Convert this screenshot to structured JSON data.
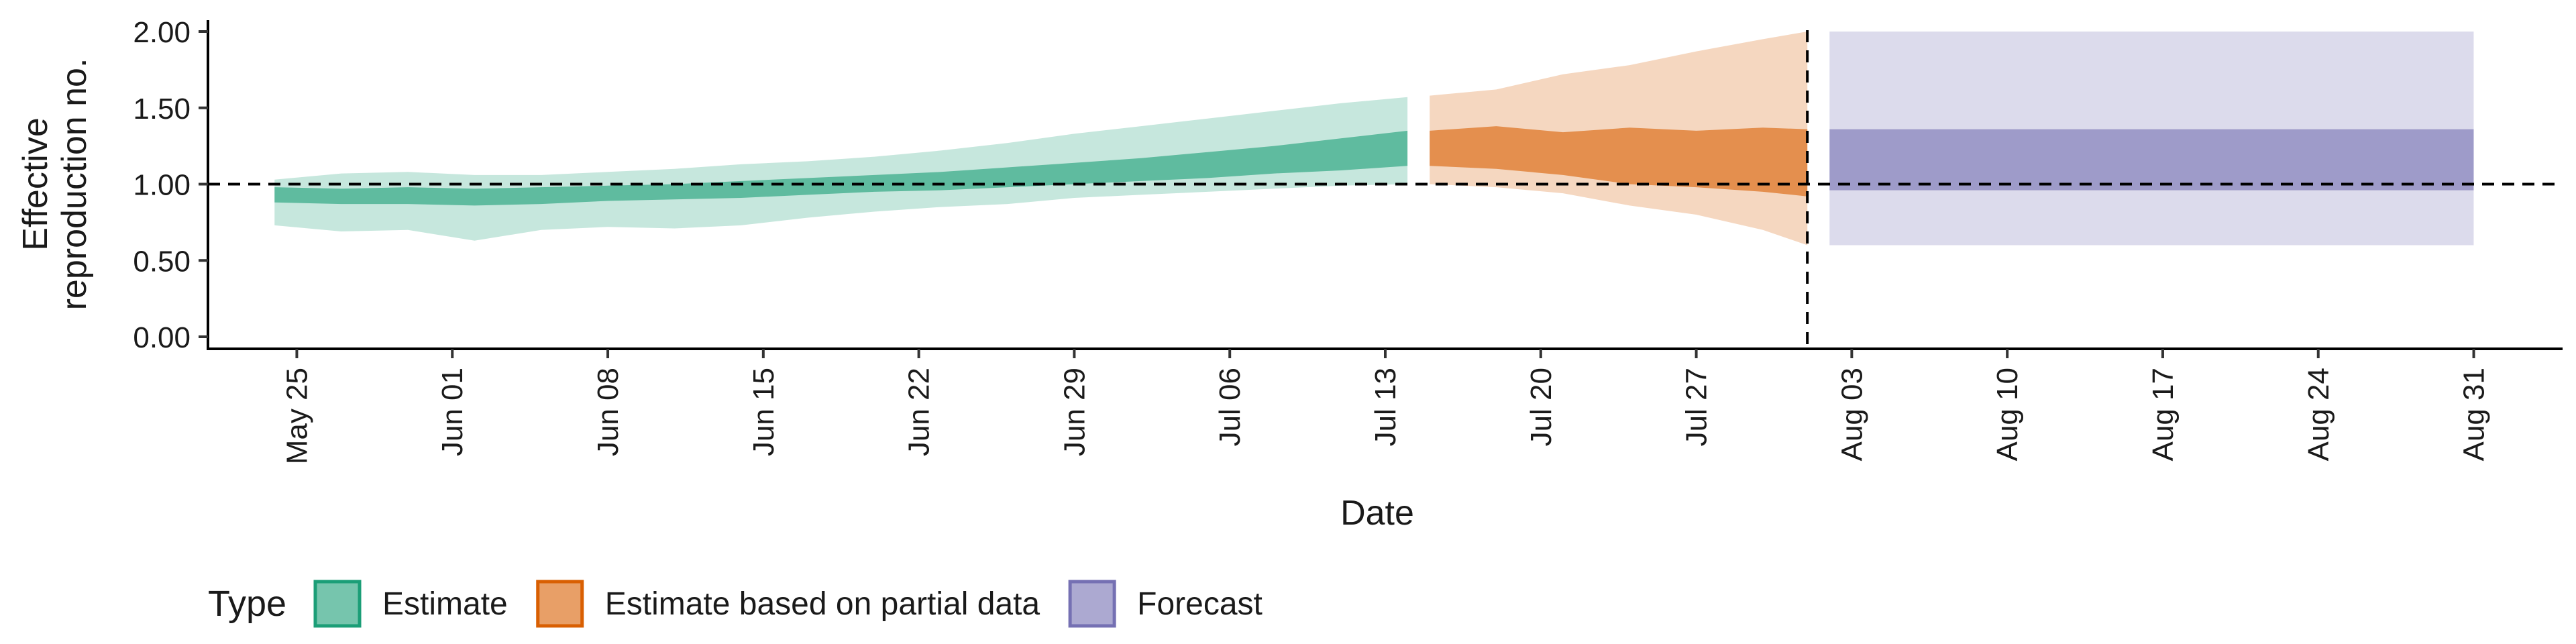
{
  "chart_data": {
    "type": "area",
    "xlabel": "Date",
    "ylabel": [
      "Effective",
      "reproduction no."
    ],
    "ylim": [
      0.0,
      2.0
    ],
    "y_ticks": [
      "0.00",
      "0.50",
      "1.00",
      "1.50",
      "2.00"
    ],
    "x_range": [
      "2020-05-21",
      "2020-09-04"
    ],
    "x_ticks": [
      {
        "date": "2020-05-25",
        "label": "May 25"
      },
      {
        "date": "2020-06-01",
        "label": "Jun 01"
      },
      {
        "date": "2020-06-08",
        "label": "Jun 08"
      },
      {
        "date": "2020-06-15",
        "label": "Jun 15"
      },
      {
        "date": "2020-06-22",
        "label": "Jun 22"
      },
      {
        "date": "2020-06-29",
        "label": "Jun 29"
      },
      {
        "date": "2020-07-06",
        "label": "Jul 06"
      },
      {
        "date": "2020-07-13",
        "label": "Jul 13"
      },
      {
        "date": "2020-07-20",
        "label": "Jul 20"
      },
      {
        "date": "2020-07-27",
        "label": "Jul 27"
      },
      {
        "date": "2020-08-03",
        "label": "Aug 03"
      },
      {
        "date": "2020-08-10",
        "label": "Aug 10"
      },
      {
        "date": "2020-08-17",
        "label": "Aug 17"
      },
      {
        "date": "2020-08-24",
        "label": "Aug 24"
      },
      {
        "date": "2020-08-31",
        "label": "Aug 31"
      }
    ],
    "reference_line": {
      "y": 1.0,
      "style": "dashed"
    },
    "vertical_line": {
      "date": "2020-08-01",
      "style": "dashed"
    },
    "legend": {
      "title": "Type",
      "position": "bottom"
    },
    "series": [
      {
        "name": "Estimate",
        "fill": "#1b9e77",
        "dates": [
          "2020-05-24",
          "2020-05-27",
          "2020-05-30",
          "2020-06-02",
          "2020-06-05",
          "2020-06-08",
          "2020-06-11",
          "2020-06-14",
          "2020-06-17",
          "2020-06-20",
          "2020-06-23",
          "2020-06-26",
          "2020-06-29",
          "2020-07-02",
          "2020-07-05",
          "2020-07-08",
          "2020-07-11",
          "2020-07-14"
        ],
        "outer_lower": [
          0.73,
          0.69,
          0.7,
          0.63,
          0.7,
          0.72,
          0.71,
          0.73,
          0.78,
          0.82,
          0.85,
          0.87,
          0.91,
          0.93,
          0.95,
          0.97,
          0.99,
          1.0
        ],
        "outer_upper": [
          1.03,
          1.07,
          1.08,
          1.06,
          1.06,
          1.08,
          1.1,
          1.13,
          1.15,
          1.18,
          1.22,
          1.27,
          1.33,
          1.38,
          1.43,
          1.48,
          1.53,
          1.57
        ],
        "inner_lower": [
          0.88,
          0.87,
          0.87,
          0.86,
          0.87,
          0.89,
          0.9,
          0.91,
          0.93,
          0.95,
          0.96,
          0.98,
          1.0,
          1.02,
          1.04,
          1.07,
          1.09,
          1.12
        ],
        "inner_upper": [
          0.98,
          0.97,
          0.98,
          0.97,
          0.98,
          0.99,
          1.0,
          1.02,
          1.04,
          1.06,
          1.08,
          1.11,
          1.14,
          1.17,
          1.21,
          1.25,
          1.3,
          1.35
        ]
      },
      {
        "name": "Estimate based on partial data",
        "fill": "#d95f02",
        "dates": [
          "2020-07-15",
          "2020-07-18",
          "2020-07-21",
          "2020-07-24",
          "2020-07-27",
          "2020-07-30",
          "2020-08-01"
        ],
        "outer_lower": [
          1.0,
          0.98,
          0.94,
          0.86,
          0.8,
          0.7,
          0.6
        ],
        "outer_upper": [
          1.58,
          1.62,
          1.72,
          1.78,
          1.87,
          1.95,
          2.0
        ],
        "inner_lower": [
          1.12,
          1.1,
          1.06,
          1.0,
          0.98,
          0.95,
          0.92
        ],
        "inner_upper": [
          1.35,
          1.38,
          1.34,
          1.37,
          1.35,
          1.37,
          1.36
        ]
      },
      {
        "name": "Forecast",
        "fill": "#7570b3",
        "dates": [
          "2020-08-02",
          "2020-08-31"
        ],
        "outer_lower": [
          0.6,
          0.6
        ],
        "outer_upper": [
          2.0,
          2.0
        ],
        "inner_lower": [
          0.96,
          0.96
        ],
        "inner_upper": [
          1.36,
          1.36
        ]
      }
    ]
  }
}
